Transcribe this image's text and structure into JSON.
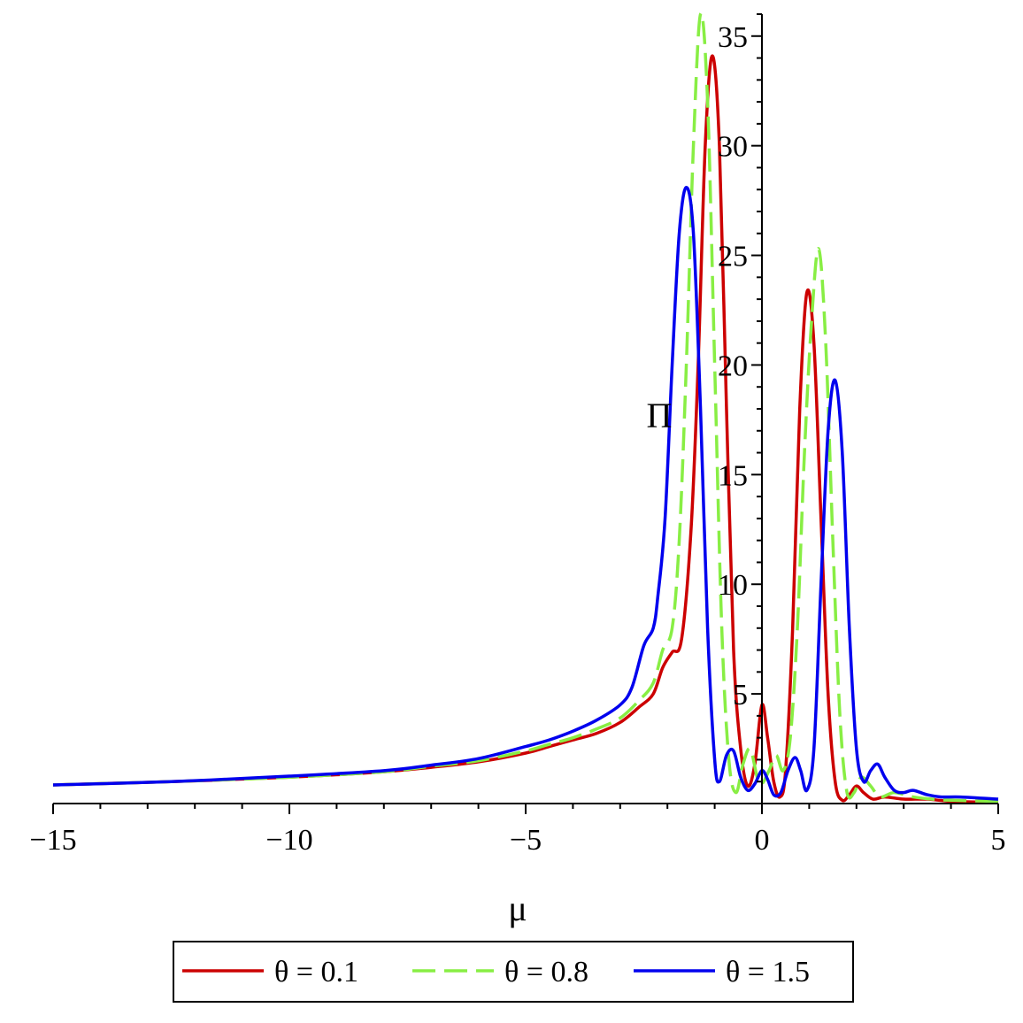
{
  "chart_data": {
    "type": "line",
    "title": "",
    "xlabel": "μ",
    "ylabel": "Π",
    "xlim": [
      -15,
      5
    ],
    "ylim": [
      0,
      36
    ],
    "x_ticks": [
      -15,
      -10,
      -5,
      0,
      5
    ],
    "x_tick_labels": [
      "−15",
      "−10",
      "−5",
      "0",
      "5"
    ],
    "y_ticks": [
      5,
      10,
      15,
      20,
      25,
      30,
      35
    ],
    "y_tick_labels": [
      "5",
      "10",
      "15",
      "20",
      "25",
      "30",
      "35"
    ],
    "grid": false,
    "legend_position": "bottom",
    "series": [
      {
        "name": "θ = 0.1",
        "color": "#cc0000",
        "dash": "solid",
        "points": [
          [
            -15,
            0.85
          ],
          [
            -12.5,
            1.0
          ],
          [
            -10,
            1.2
          ],
          [
            -8,
            1.45
          ],
          [
            -7,
            1.65
          ],
          [
            -6,
            1.9
          ],
          [
            -5,
            2.3
          ],
          [
            -4.5,
            2.6
          ],
          [
            -4,
            2.9
          ],
          [
            -3.5,
            3.2
          ],
          [
            -3,
            3.7
          ],
          [
            -2.6,
            4.4
          ],
          [
            -2.3,
            5.0
          ],
          [
            -2.1,
            6.2
          ],
          [
            -1.9,
            6.9
          ],
          [
            -1.7,
            7.5
          ],
          [
            -1.5,
            12.5
          ],
          [
            -1.35,
            20
          ],
          [
            -1.2,
            30
          ],
          [
            -1.05,
            34.1
          ],
          [
            -0.9,
            30
          ],
          [
            -0.75,
            18
          ],
          [
            -0.6,
            7
          ],
          [
            -0.45,
            2.5
          ],
          [
            -0.3,
            0.8
          ],
          [
            -0.15,
            1.8
          ],
          [
            0,
            4.5
          ],
          [
            0.12,
            3.0
          ],
          [
            0.25,
            1.0
          ],
          [
            0.38,
            0.3
          ],
          [
            0.5,
            1.5
          ],
          [
            0.65,
            8
          ],
          [
            0.8,
            18
          ],
          [
            0.95,
            23.3
          ],
          [
            1.1,
            21
          ],
          [
            1.25,
            13
          ],
          [
            1.4,
            5
          ],
          [
            1.55,
            1.0
          ],
          [
            1.7,
            0.15
          ],
          [
            1.85,
            0.4
          ],
          [
            2.0,
            0.8
          ],
          [
            2.15,
            0.5
          ],
          [
            2.35,
            0.2
          ],
          [
            2.6,
            0.3
          ],
          [
            3.0,
            0.2
          ],
          [
            3.5,
            0.2
          ],
          [
            4.0,
            0.1
          ],
          [
            5.0,
            0.05
          ]
        ]
      },
      {
        "name": "θ = 0.8",
        "color": "#88ee44",
        "dash": "dashed",
        "points": [
          [
            -15,
            0.85
          ],
          [
            -12.5,
            1.0
          ],
          [
            -10,
            1.2
          ],
          [
            -8,
            1.45
          ],
          [
            -7,
            1.7
          ],
          [
            -6,
            1.95
          ],
          [
            -5,
            2.4
          ],
          [
            -4.5,
            2.7
          ],
          [
            -4,
            3.0
          ],
          [
            -3.5,
            3.4
          ],
          [
            -3,
            3.9
          ],
          [
            -2.6,
            4.7
          ],
          [
            -2.3,
            5.5
          ],
          [
            -2.1,
            7.0
          ],
          [
            -1.9,
            8.0
          ],
          [
            -1.75,
            12
          ],
          [
            -1.6,
            20
          ],
          [
            -1.45,
            30
          ],
          [
            -1.3,
            36
          ],
          [
            -1.15,
            32
          ],
          [
            -1.0,
            20
          ],
          [
            -0.85,
            8
          ],
          [
            -0.7,
            2.0
          ],
          [
            -0.55,
            0.5
          ],
          [
            -0.4,
            1.8
          ],
          [
            -0.25,
            2.5
          ],
          [
            -0.1,
            1.2
          ],
          [
            0,
            0.9
          ],
          [
            0.15,
            1.5
          ],
          [
            0.3,
            2.2
          ],
          [
            0.45,
            1.5
          ],
          [
            0.6,
            3
          ],
          [
            0.75,
            8
          ],
          [
            0.9,
            16
          ],
          [
            1.05,
            22
          ],
          [
            1.2,
            25.3
          ],
          [
            1.35,
            21
          ],
          [
            1.5,
            12
          ],
          [
            1.65,
            4
          ],
          [
            1.8,
            0.5
          ],
          [
            1.95,
            0.5
          ],
          [
            2.1,
            1.2
          ],
          [
            2.3,
            0.8
          ],
          [
            2.5,
            0.3
          ],
          [
            2.8,
            0.5
          ],
          [
            3.2,
            0.3
          ],
          [
            3.6,
            0.2
          ],
          [
            4.0,
            0.15
          ],
          [
            5.0,
            0.1
          ]
        ]
      },
      {
        "name": "θ = 1.5",
        "color": "#0000ee",
        "dash": "solid",
        "points": [
          [
            -15,
            0.85
          ],
          [
            -12.5,
            1.0
          ],
          [
            -10,
            1.25
          ],
          [
            -8,
            1.5
          ],
          [
            -7,
            1.75
          ],
          [
            -6,
            2.05
          ],
          [
            -5,
            2.6
          ],
          [
            -4.5,
            2.9
          ],
          [
            -4,
            3.3
          ],
          [
            -3.5,
            3.8
          ],
          [
            -3,
            4.5
          ],
          [
            -2.75,
            5.3
          ],
          [
            -2.5,
            7.2
          ],
          [
            -2.3,
            8.0
          ],
          [
            -2.2,
            9.5
          ],
          [
            -2.05,
            13
          ],
          [
            -1.9,
            20
          ],
          [
            -1.75,
            26
          ],
          [
            -1.6,
            28.1
          ],
          [
            -1.45,
            26
          ],
          [
            -1.3,
            18
          ],
          [
            -1.15,
            8
          ],
          [
            -1.0,
            2.0
          ],
          [
            -0.9,
            1.0
          ],
          [
            -0.75,
            2.2
          ],
          [
            -0.6,
            2.4
          ],
          [
            -0.45,
            1.2
          ],
          [
            -0.3,
            0.6
          ],
          [
            -0.15,
            0.9
          ],
          [
            0,
            1.5
          ],
          [
            0.12,
            1.1
          ],
          [
            0.25,
            0.4
          ],
          [
            0.4,
            0.5
          ],
          [
            0.55,
            1.5
          ],
          [
            0.7,
            2.1
          ],
          [
            0.82,
            1.5
          ],
          [
            0.95,
            0.6
          ],
          [
            1.1,
            2.5
          ],
          [
            1.25,
            10
          ],
          [
            1.4,
            17
          ],
          [
            1.55,
            19.3
          ],
          [
            1.7,
            16
          ],
          [
            1.85,
            8
          ],
          [
            2.0,
            2.5
          ],
          [
            2.15,
            1.0
          ],
          [
            2.3,
            1.5
          ],
          [
            2.45,
            1.8
          ],
          [
            2.6,
            1.2
          ],
          [
            2.8,
            0.6
          ],
          [
            3.0,
            0.5
          ],
          [
            3.2,
            0.6
          ],
          [
            3.5,
            0.4
          ],
          [
            3.8,
            0.3
          ],
          [
            4.2,
            0.3
          ],
          [
            5.0,
            0.2
          ]
        ]
      }
    ]
  }
}
